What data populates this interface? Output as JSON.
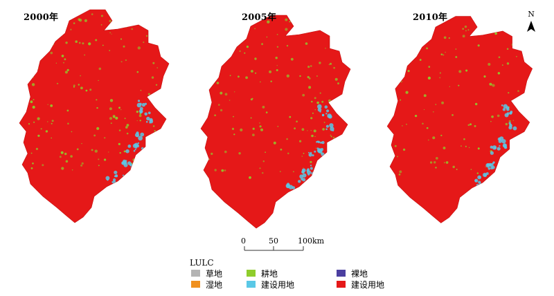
{
  "panels": [
    {
      "year_label": "2000年"
    },
    {
      "year_label": "2005年"
    },
    {
      "year_label": "2010年"
    }
  ],
  "north_arrow": {
    "label": "N"
  },
  "scale_bar": {
    "labels": [
      "0",
      "50",
      "100km"
    ]
  },
  "legend": {
    "title": "LULC",
    "items": [
      {
        "label": "草地",
        "color": "#b4b4b4"
      },
      {
        "label": "耕地",
        "color": "#8fcd2c"
      },
      {
        "label": "裸地",
        "color": "#4b3fa0"
      },
      {
        "label": "湿地",
        "color": "#f0901e"
      },
      {
        "label": "建设用地",
        "color": "#5ac8e6"
      },
      {
        "label": "建设用地",
        "color": "#e51818"
      }
    ]
  },
  "map_colors": {
    "dominant": "#e51818",
    "cropland": "#8fcd2c",
    "water_coast": "#5ac8e6",
    "border": "#c41010"
  }
}
